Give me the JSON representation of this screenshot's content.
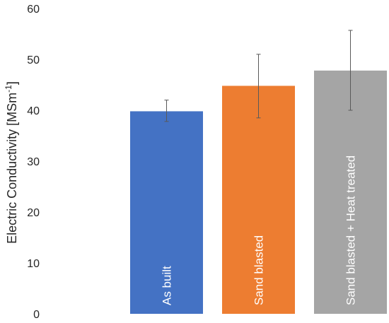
{
  "chart_data": {
    "type": "bar",
    "title": "",
    "xlabel": "",
    "ylabel": "Electric Conductivity [MSm",
    "ylabel_superscript": "-1",
    "ylabel_close": "]",
    "ylim": [
      0,
      60
    ],
    "yticks": [
      0,
      10,
      20,
      30,
      40,
      50,
      60
    ],
    "yticks_labels": [
      "0",
      "10",
      "20",
      "30",
      "40",
      "50",
      "60"
    ],
    "grid": false,
    "categories": [
      "As built",
      "Sand blasted",
      "Sand blasted + Heat treated"
    ],
    "values": [
      39.8,
      44.8,
      47.8
    ],
    "error_low": [
      37.8,
      38.5,
      40.0
    ],
    "error_high": [
      42.0,
      51.0,
      55.7
    ],
    "colors": [
      "#4472c4",
      "#ed7d31",
      "#a5a5a5"
    ],
    "label_text_colors": [
      "#ffffff",
      "#262626",
      "#262626"
    ]
  }
}
